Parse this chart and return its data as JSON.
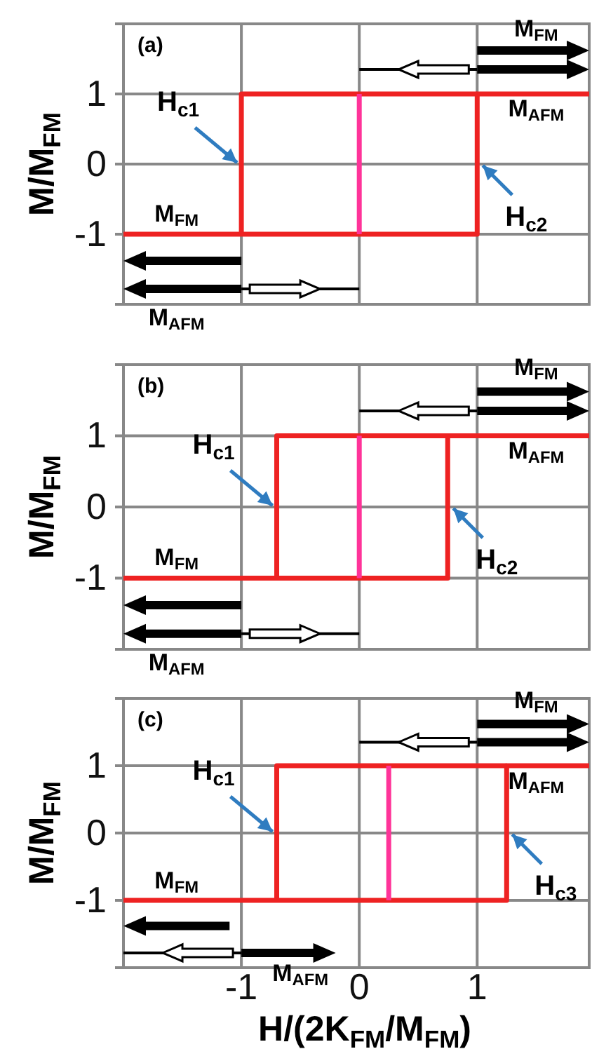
{
  "chart_data": [
    {
      "type": "line",
      "title": "(a)",
      "ylabel": "M/M$_{FM}$",
      "xlim": [
        -2,
        1.95
      ],
      "ylim": [
        -2,
        2
      ],
      "xticks": [
        -1,
        0,
        1
      ],
      "yticks": [
        -1,
        0,
        1
      ],
      "grid": true,
      "tick_labels": "y",
      "series": [
        {
          "color": "#ee2222",
          "x": [
            -2,
            1,
            1,
            1.95
          ],
          "values": [
            -1,
            -1,
            1,
            1
          ]
        },
        {
          "color": "#ee2222",
          "x": [
            -1,
            -1,
            1
          ],
          "values": [
            -1,
            1,
            1
          ]
        },
        {
          "color": "#ff3399",
          "x": [
            0,
            0
          ],
          "values": [
            -1,
            1
          ]
        }
      ],
      "annotations": [
        "M$_{FM}$",
        "M$_{AFM}$",
        "M$_{FM}$",
        "M$_{AFM}$",
        {
          "text": "H$_{c1}$",
          "x": -1,
          "y": 0
        },
        {
          "text": "H$_{c2}$",
          "x": 1,
          "y": 0
        }
      ]
    },
    {
      "type": "line",
      "title": "(b)",
      "ylabel": "M/M$_{FM}$",
      "xlim": [
        -2,
        1.95
      ],
      "ylim": [
        -2,
        2
      ],
      "xticks": [
        -1,
        0,
        1
      ],
      "yticks": [
        -1,
        0,
        1
      ],
      "grid": true,
      "tick_labels": "y",
      "series": [
        {
          "color": "#ee2222",
          "x": [
            -2,
            0.75,
            0.75,
            1.95
          ],
          "values": [
            -1,
            -1,
            1,
            1
          ]
        },
        {
          "color": "#ee2222",
          "x": [
            -0.7,
            -0.7,
            0.75
          ],
          "values": [
            -1,
            1,
            1
          ]
        },
        {
          "color": "#ff3399",
          "x": [
            0,
            0
          ],
          "values": [
            -1,
            1
          ]
        }
      ],
      "annotations": [
        "M$_{FM}$",
        "M$_{AFM}$",
        "M$_{FM}$",
        "M$_{AFM}$",
        {
          "text": "H$_{c1}$",
          "x": -0.7,
          "y": 0
        },
        {
          "text": "H$_{c2}$",
          "x": 0.75,
          "y": 0
        }
      ]
    },
    {
      "type": "line",
      "title": "(c)",
      "ylabel": "M/M$_{FM}$",
      "xlabel": "H/(2K$_{FM}$/M$_{FM}$)",
      "xlim": [
        -2,
        1.95
      ],
      "ylim": [
        -2,
        2
      ],
      "xticks": [
        -1,
        0,
        1
      ],
      "yticks": [
        -1,
        0,
        1
      ],
      "grid": true,
      "series": [
        {
          "color": "#ee2222",
          "x": [
            -2,
            1.25,
            1.25,
            1.95
          ],
          "values": [
            -1,
            -1,
            1,
            1
          ]
        },
        {
          "color": "#ee2222",
          "x": [
            -0.7,
            -0.7,
            1.25
          ],
          "values": [
            -1,
            1,
            1
          ]
        },
        {
          "color": "#ff3399",
          "x": [
            0.25,
            0.25
          ],
          "values": [
            -1,
            1
          ]
        }
      ],
      "annotations": [
        "M$_{FM}$",
        "M$_{AFM}$",
        "M$_{FM}$",
        "M$_{AFM}$",
        {
          "text": "H$_{c1}$",
          "x": -0.7,
          "y": 0
        },
        {
          "text": "H$_{c3}$",
          "x": 1.25,
          "y": 0
        }
      ]
    }
  ]
}
